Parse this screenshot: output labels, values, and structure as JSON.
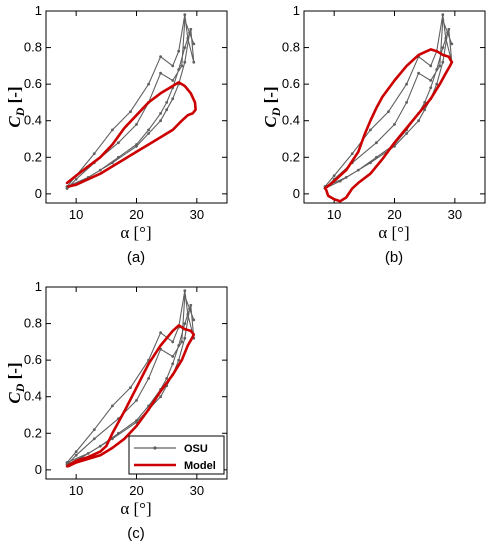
{
  "chart_data": [
    {
      "type": "line",
      "panel": "(a)",
      "xlabel": "α [°]",
      "ylabel_main": "C",
      "ylabel_sub": "D",
      "ylabel_unit": " [-]",
      "xlim": [
        5,
        35
      ],
      "ylim": [
        -0.05,
        1
      ],
      "xticks": [
        10,
        20,
        30
      ],
      "yticks": [
        0,
        0.2,
        0.4,
        0.6,
        0.8,
        1
      ],
      "grid": false,
      "series": [
        {
          "name": "OSU",
          "color": "#606060",
          "x": [
            8.5,
            11,
            14,
            17,
            20,
            22,
            24,
            25,
            26,
            27,
            28,
            29,
            29.5,
            28.5,
            28,
            27,
            26,
            24,
            22,
            19,
            16,
            13,
            10,
            8.5,
            8.5,
            12,
            16,
            20,
            22,
            24,
            25,
            26,
            27,
            28,
            28.8,
            29.5,
            28,
            27.5,
            26,
            24,
            22,
            20,
            17,
            13,
            10,
            8.5
          ],
          "y": [
            0.03,
            0.07,
            0.13,
            0.2,
            0.27,
            0.35,
            0.44,
            0.5,
            0.58,
            0.68,
            0.8,
            0.9,
            0.72,
            0.85,
            0.98,
            0.78,
            0.7,
            0.75,
            0.6,
            0.45,
            0.35,
            0.22,
            0.1,
            0.04,
            0.04,
            0.09,
            0.17,
            0.26,
            0.33,
            0.4,
            0.46,
            0.52,
            0.6,
            0.72,
            0.88,
            0.82,
            0.95,
            0.7,
            0.62,
            0.66,
            0.5,
            0.38,
            0.28,
            0.17,
            0.08,
            0.03
          ]
        },
        {
          "name": "Model",
          "color": "#cc0000",
          "x": [
            8.5,
            10,
            12,
            14,
            16,
            18,
            20,
            22,
            24,
            26,
            27,
            28,
            29,
            29.7,
            29.8,
            29.3,
            28.5,
            27.5,
            26,
            24,
            22,
            20,
            18,
            16,
            14,
            12,
            10,
            8.7
          ],
          "y": [
            0.06,
            0.1,
            0.15,
            0.2,
            0.27,
            0.36,
            0.43,
            0.5,
            0.55,
            0.59,
            0.61,
            0.59,
            0.55,
            0.5,
            0.46,
            0.44,
            0.43,
            0.4,
            0.35,
            0.31,
            0.27,
            0.23,
            0.19,
            0.15,
            0.11,
            0.08,
            0.05,
            0.04
          ]
        }
      ]
    },
    {
      "type": "line",
      "panel": "(b)",
      "xlabel": "α [°]",
      "ylabel_main": "C",
      "ylabel_sub": "D",
      "ylabel_unit": " [-]",
      "xlim": [
        5,
        35
      ],
      "ylim": [
        -0.05,
        1
      ],
      "xticks": [
        10,
        20,
        30
      ],
      "yticks": [
        0,
        0.2,
        0.4,
        0.6,
        0.8,
        1
      ],
      "grid": false,
      "series": [
        {
          "name": "OSU",
          "color": "#606060",
          "x": [
            8.5,
            11,
            14,
            17,
            20,
            22,
            24,
            25,
            26,
            27,
            28,
            29,
            29.5,
            28.5,
            28,
            27,
            26,
            24,
            22,
            19,
            16,
            13,
            10,
            8.5,
            8.5,
            12,
            16,
            20,
            22,
            24,
            25,
            26,
            27,
            28,
            28.8,
            29.5,
            28,
            27.5,
            26,
            24,
            22,
            20,
            17,
            13,
            10,
            8.5
          ],
          "y": [
            0.03,
            0.07,
            0.13,
            0.2,
            0.27,
            0.35,
            0.44,
            0.5,
            0.58,
            0.68,
            0.8,
            0.9,
            0.72,
            0.85,
            0.98,
            0.78,
            0.7,
            0.75,
            0.6,
            0.45,
            0.35,
            0.22,
            0.1,
            0.04,
            0.04,
            0.09,
            0.17,
            0.26,
            0.33,
            0.4,
            0.46,
            0.52,
            0.6,
            0.72,
            0.88,
            0.82,
            0.95,
            0.7,
            0.62,
            0.66,
            0.5,
            0.38,
            0.28,
            0.17,
            0.08,
            0.03
          ]
        },
        {
          "name": "Model",
          "color": "#cc0000",
          "x": [
            8.5,
            10,
            12,
            14,
            15,
            16,
            17,
            18,
            20,
            22,
            24,
            26,
            27,
            28,
            29,
            29.5,
            29.2,
            28.5,
            27.5,
            26,
            24,
            22,
            20,
            18,
            16,
            14,
            13,
            12,
            11,
            10,
            9,
            8.7
          ],
          "y": [
            0.03,
            0.07,
            0.13,
            0.23,
            0.32,
            0.4,
            0.47,
            0.53,
            0.62,
            0.7,
            0.76,
            0.79,
            0.78,
            0.76,
            0.75,
            0.72,
            0.7,
            0.66,
            0.6,
            0.52,
            0.44,
            0.36,
            0.28,
            0.19,
            0.11,
            0.06,
            0.03,
            -0.02,
            -0.04,
            -0.03,
            -0.01,
            0.02
          ]
        }
      ]
    },
    {
      "type": "line",
      "panel": "(c)",
      "xlabel": "α [°]",
      "ylabel_main": "C",
      "ylabel_sub": "D",
      "ylabel_unit": " [-]",
      "xlim": [
        5,
        35
      ],
      "ylim": [
        -0.05,
        1
      ],
      "xticks": [
        10,
        20,
        30
      ],
      "yticks": [
        0,
        0.2,
        0.4,
        0.6,
        0.8,
        1
      ],
      "grid": false,
      "legend": "bottom-right",
      "series": [
        {
          "name": "OSU",
          "color": "#606060",
          "x": [
            8.5,
            11,
            14,
            17,
            20,
            22,
            24,
            25,
            26,
            27,
            28,
            29,
            29.5,
            28.5,
            28,
            27,
            26,
            24,
            22,
            19,
            16,
            13,
            10,
            8.5,
            8.5,
            12,
            16,
            20,
            22,
            24,
            25,
            26,
            27,
            28,
            28.8,
            29.5,
            28,
            27.5,
            26,
            24,
            22,
            20,
            17,
            13,
            10,
            8.5
          ],
          "y": [
            0.03,
            0.07,
            0.13,
            0.2,
            0.27,
            0.35,
            0.44,
            0.5,
            0.58,
            0.68,
            0.8,
            0.9,
            0.72,
            0.85,
            0.98,
            0.78,
            0.7,
            0.75,
            0.6,
            0.45,
            0.35,
            0.22,
            0.1,
            0.04,
            0.04,
            0.09,
            0.17,
            0.26,
            0.33,
            0.4,
            0.46,
            0.52,
            0.6,
            0.72,
            0.88,
            0.82,
            0.95,
            0.7,
            0.62,
            0.66,
            0.5,
            0.38,
            0.28,
            0.17,
            0.08,
            0.03
          ]
        },
        {
          "name": "Model",
          "color": "#cc0000",
          "x": [
            8.5,
            10,
            12,
            14,
            15,
            16,
            18,
            20,
            22,
            24,
            26,
            27,
            28,
            29,
            29.5,
            29.2,
            28.5,
            27.5,
            26,
            24,
            22,
            20,
            18,
            16,
            15,
            14,
            12,
            10,
            8.7
          ],
          "y": [
            0.02,
            0.05,
            0.07,
            0.1,
            0.13,
            0.2,
            0.32,
            0.45,
            0.58,
            0.68,
            0.76,
            0.79,
            0.77,
            0.76,
            0.74,
            0.72,
            0.68,
            0.6,
            0.52,
            0.43,
            0.33,
            0.24,
            0.17,
            0.12,
            0.1,
            0.08,
            0.06,
            0.04,
            0.02
          ]
        }
      ]
    }
  ]
}
